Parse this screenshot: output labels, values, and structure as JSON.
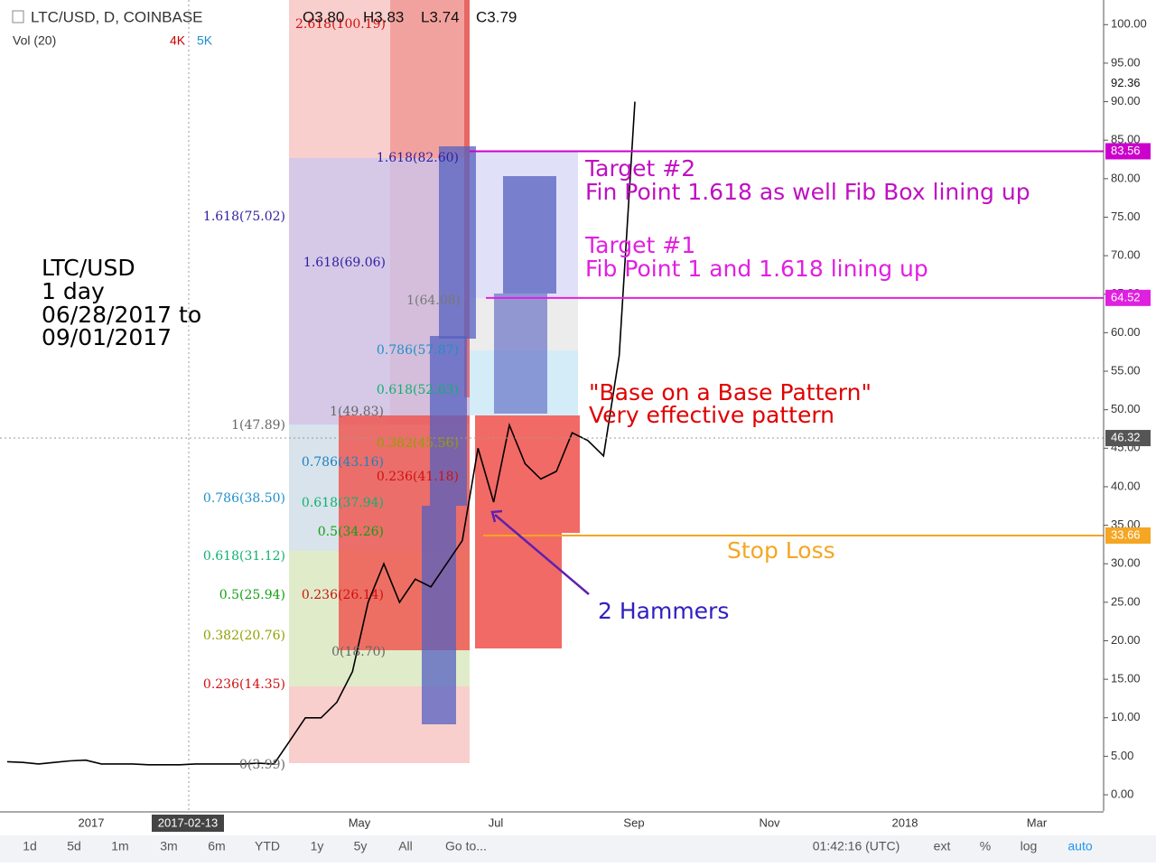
{
  "header": {
    "symbol": "LTC/USD, D, COINBASE",
    "ohlc": [
      "O3.80",
      "H3.83",
      "L3.74",
      "C3.79"
    ],
    "volume": "Vol (20)",
    "vol_ma": [
      "4K",
      "5K"
    ]
  },
  "chart_data": {
    "type": "line",
    "color": "#000000",
    "values": [
      4.3,
      4.2,
      4.0,
      4.2,
      4.4,
      4.5,
      4.0,
      4.0,
      4.0,
      3.9,
      3.9,
      3.9,
      4.0,
      4.0,
      4.0,
      4.0,
      4.1,
      4.0,
      7.0,
      10,
      10,
      12,
      16,
      25,
      30,
      25,
      28,
      27,
      30,
      33,
      45,
      38,
      48,
      43,
      41,
      42,
      47,
      46,
      44,
      57,
      90
    ],
    "ylim": [
      -2.34,
      103.2
    ],
    "yticks": [
      {
        "value": 0,
        "label": "0.00"
      },
      {
        "value": 5,
        "label": "5.00"
      },
      {
        "value": 10,
        "label": "10.00"
      },
      {
        "value": 15,
        "label": "15.00"
      },
      {
        "value": 20,
        "label": "20.00"
      },
      {
        "value": 25,
        "label": "25.00"
      },
      {
        "value": 30,
        "label": "30.00"
      },
      {
        "value": 35,
        "label": "35.00"
      },
      {
        "value": 40,
        "label": "40.00"
      },
      {
        "value": 45,
        "label": "45.00"
      },
      {
        "value": 50,
        "label": "50.00"
      },
      {
        "value": 55,
        "label": "55.00"
      },
      {
        "value": 60,
        "label": "60.00"
      },
      {
        "value": 65,
        "label": "65.00"
      },
      {
        "value": 70,
        "label": "70.00"
      },
      {
        "value": 75,
        "label": "75.00"
      },
      {
        "value": 80,
        "label": "80.00"
      },
      {
        "value": 85,
        "label": "85.00"
      },
      {
        "value": 90,
        "label": "90.00"
      },
      {
        "value": 95,
        "label": "95.00"
      },
      {
        "value": 100,
        "label": "100.00"
      }
    ],
    "levels": [
      {
        "value": 83.56,
        "color": "#cc00cc"
      },
      {
        "value": 64.52,
        "color": "#e020e0"
      },
      {
        "value": 33.66,
        "color": "#f5a623"
      },
      {
        "value": 46.32,
        "color": "#555555"
      },
      {
        "value": 92.36,
        "color": "#ffffff"
      }
    ],
    "x_labels": [
      "2017",
      "May",
      "Jul",
      "Sep",
      "Nov",
      "2018",
      "Mar"
    ],
    "crosshair_date": "2017-02-13"
  },
  "fib_labels": [
    "2.618(100.19)",
    "1.618(82.60)",
    "1.618(75.02)",
    "1.618(69.06)",
    "1(64.08)",
    "0.786(57.87)",
    "0.618(52.63)",
    "1(49.83)",
    "1(47.89)",
    "0.382(45.56)",
    "0.786(43.16)",
    "0.236(41.18)",
    "0.786(38.50)",
    "0.618(37.94)",
    "0.5(34.26)",
    "0.618(31.12)",
    "0.5(25.94)",
    "0.236(26.14)",
    "0.382(20.76)",
    "0(18.70)",
    "0.236(14.35)",
    "0(3.99)"
  ],
  "annotations": {
    "info": [
      "LTC/USD",
      "1 day",
      "06/28/2017 to",
      "09/01/2017"
    ],
    "target2": [
      "Target #2",
      "Fin Point 1.618 as well Fib Box lining up"
    ],
    "target1": [
      "Target #1",
      "Fib Point 1 and 1.618 lining up"
    ],
    "base": [
      "\"Base on a Base Pattern\"",
      "Very effective pattern"
    ],
    "stop": "Stop Loss",
    "hammers": "2 Hammers"
  },
  "toolbar": {
    "ranges": [
      "1d",
      "5d",
      "1m",
      "3m",
      "6m",
      "YTD",
      "1y",
      "5y",
      "All",
      "Go to..."
    ],
    "clock": "01:42:16 (UTC)",
    "options": [
      "ext",
      "%",
      "log",
      "auto"
    ]
  }
}
